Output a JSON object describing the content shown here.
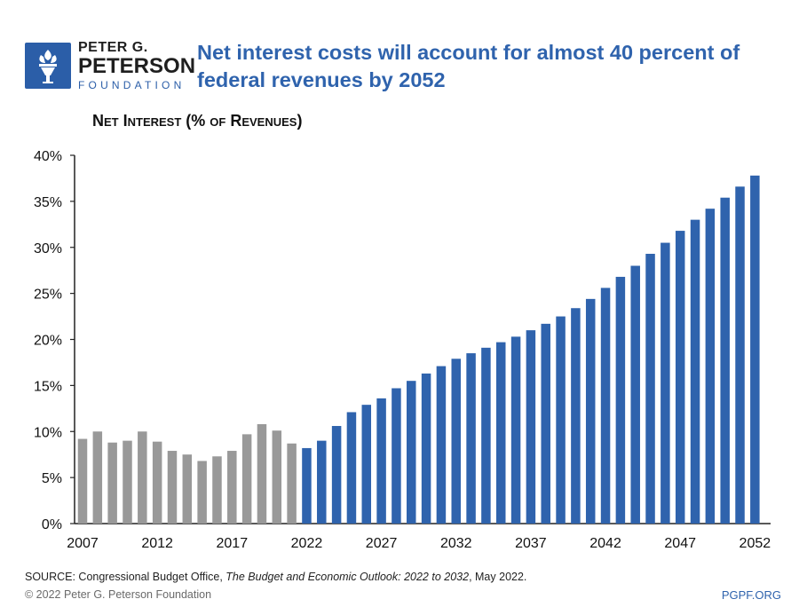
{
  "logo": {
    "line1": "PETER G.",
    "line2": "PETERSON",
    "line3": "FOUNDATION",
    "icon": "torch-icon",
    "color": "#2b5ea8"
  },
  "header": {
    "title": "Net interest costs will account for almost 40 percent of federal revenues by 2052"
  },
  "footer": {
    "source_prefix": "SOURCE: Congressional Budget Office, ",
    "source_title": "The Budget and Economic Outlook: 2022 to 2032",
    "source_suffix": ", May 2022.",
    "copyright": "© 2022 Peter G. Peterson Foundation",
    "site": "PGPF.ORG"
  },
  "chart_data": {
    "type": "bar",
    "title": "Net Interest (% of Revenues)",
    "xlabel": "",
    "ylabel": "",
    "ylim": [
      0,
      40
    ],
    "y_ticks": [
      "0%",
      "5%",
      "10%",
      "15%",
      "20%",
      "25%",
      "30%",
      "35%",
      "40%"
    ],
    "x_ticks": [
      "2007",
      "2012",
      "2017",
      "2022",
      "2027",
      "2032",
      "2037",
      "2042",
      "2047",
      "2052"
    ],
    "grid": false,
    "colors": {
      "historical": "#999999",
      "projected": "#2f63ad"
    },
    "series": [
      {
        "kind": "historical",
        "x": [
          2007,
          2008,
          2009,
          2010,
          2011,
          2012,
          2013,
          2014,
          2015,
          2016,
          2017,
          2018,
          2019,
          2020,
          2021
        ],
        "values": [
          9.2,
          10.0,
          8.8,
          9.0,
          10.0,
          8.9,
          7.9,
          7.5,
          6.8,
          7.3,
          7.9,
          9.7,
          10.8,
          10.1,
          8.7
        ]
      },
      {
        "kind": "projected",
        "x": [
          2022,
          2023,
          2024,
          2025,
          2026,
          2027,
          2028,
          2029,
          2030,
          2031,
          2032,
          2033,
          2034,
          2035,
          2036,
          2037,
          2038,
          2039,
          2040,
          2041,
          2042,
          2043,
          2044,
          2045,
          2046,
          2047,
          2048,
          2049,
          2050,
          2051,
          2052
        ],
        "values": [
          8.2,
          9.0,
          10.6,
          12.1,
          12.9,
          13.6,
          14.7,
          15.5,
          16.3,
          17.1,
          17.9,
          18.5,
          19.1,
          19.7,
          20.3,
          21.0,
          21.7,
          22.5,
          23.4,
          24.4,
          25.6,
          26.8,
          28.0,
          29.3,
          30.5,
          31.8,
          33.0,
          34.2,
          35.4,
          36.6,
          37.8
        ]
      }
    ]
  }
}
